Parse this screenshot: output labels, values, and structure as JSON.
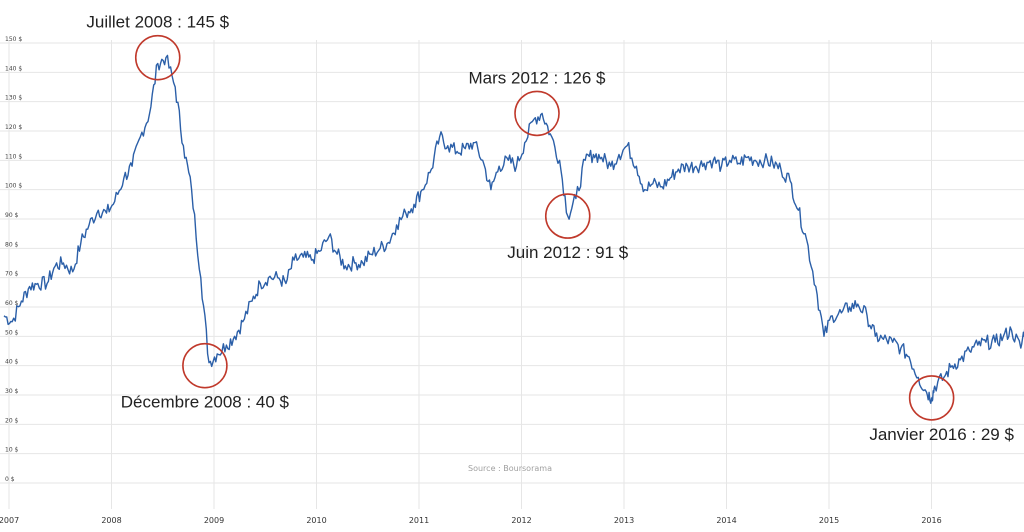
{
  "chart_data": {
    "type": "line",
    "ylabel": "",
    "xlabel": "",
    "ylim": [
      0,
      150
    ],
    "y_ticks": [
      "0 $",
      "10 $",
      "20 $",
      "30 $",
      "40 $",
      "50 $",
      "60 $",
      "70 $",
      "80 $",
      "90 $",
      "100 $",
      "110 $",
      "120 $",
      "130 $",
      "140 $",
      "150 $"
    ],
    "x_ticks": [
      "2007",
      "2008",
      "2009",
      "2010",
      "2011",
      "2012",
      "2013",
      "2014",
      "2015",
      "2016"
    ],
    "x_tick_values": [
      2007,
      2008,
      2009,
      2010,
      2011,
      2012,
      2013,
      2014,
      2015,
      2016
    ],
    "xlim": [
      2007,
      2017.0
    ],
    "grid": true,
    "line_color": "#2b5fa8",
    "annotation_color": "#c0392b",
    "source": "Source : Boursorama",
    "annotations": [
      {
        "text": "Juillet 2008 : 145 $",
        "x": 2008.5,
        "y": 145,
        "label_pos": "above"
      },
      {
        "text": "Décembre 2008 : 40 $",
        "x": 2008.96,
        "y": 40,
        "label_pos": "below"
      },
      {
        "text": "Mars 2012 : 126 $",
        "x": 2012.2,
        "y": 126,
        "label_pos": "above"
      },
      {
        "text": "Juin 2012 : 91 $",
        "x": 2012.5,
        "y": 91,
        "label_pos": "below"
      },
      {
        "text": "Janvier 2016 : 29 $",
        "x": 2016.05,
        "y": 29,
        "label_pos": "below-right"
      }
    ],
    "series": [
      {
        "x": [
          2007.0,
          2007.08,
          2007.17,
          2007.25,
          2007.33,
          2007.42,
          2007.5,
          2007.58,
          2007.67,
          2007.75,
          2007.83,
          2007.92,
          2008.0,
          2008.08,
          2008.17,
          2008.25,
          2008.33,
          2008.42,
          2008.5,
          2008.58,
          2008.67,
          2008.75,
          2008.83,
          2008.92,
          2009.0,
          2009.08,
          2009.17,
          2009.25,
          2009.33,
          2009.42,
          2009.5,
          2009.58,
          2009.67,
          2009.75,
          2009.83,
          2009.92,
          2010.0,
          2010.08,
          2010.17,
          2010.25,
          2010.33,
          2010.42,
          2010.5,
          2010.58,
          2010.67,
          2010.75,
          2010.83,
          2010.92,
          2011.0,
          2011.08,
          2011.17,
          2011.25,
          2011.33,
          2011.42,
          2011.5,
          2011.58,
          2011.67,
          2011.75,
          2011.83,
          2011.92,
          2012.0,
          2012.08,
          2012.17,
          2012.25,
          2012.33,
          2012.42,
          2012.5,
          2012.58,
          2012.67,
          2012.75,
          2012.83,
          2012.92,
          2013.0,
          2013.08,
          2013.17,
          2013.25,
          2013.33,
          2013.42,
          2013.5,
          2013.58,
          2013.67,
          2013.75,
          2013.83,
          2013.92,
          2014.0,
          2014.08,
          2014.17,
          2014.25,
          2014.33,
          2014.42,
          2014.5,
          2014.58,
          2014.67,
          2014.75,
          2014.83,
          2014.92,
          2015.0,
          2015.08,
          2015.17,
          2015.25,
          2015.33,
          2015.42,
          2015.5,
          2015.58,
          2015.67,
          2015.75,
          2015.83,
          2015.92,
          2016.0,
          2016.05,
          2016.08,
          2016.17,
          2016.25,
          2016.33,
          2016.42,
          2016.5,
          2016.58,
          2016.67,
          2016.75,
          2016.83,
          2016.92,
          2016.97
        ],
        "y": [
          57,
          55,
          62,
          67,
          68,
          68,
          74,
          75,
          72,
          82,
          88,
          93,
          92,
          96,
          104,
          108,
          118,
          126,
          143,
          145,
          135,
          115,
          100,
          70,
          41,
          44,
          47,
          50,
          55,
          62,
          68,
          70,
          70,
          68,
          76,
          77,
          76,
          79,
          84,
          78,
          74,
          75,
          75,
          78,
          80,
          82,
          88,
          92,
          95,
          100,
          107,
          118,
          115,
          113,
          114,
          116,
          110,
          100,
          108,
          110,
          108,
          116,
          124,
          126,
          119,
          110,
          91,
          97,
          110,
          112,
          111,
          108,
          112,
          115,
          108,
          100,
          102,
          101,
          104,
          107,
          108,
          108,
          109,
          110,
          108,
          110,
          109,
          111,
          110,
          110,
          109,
          107,
          103,
          93,
          83,
          67,
          50,
          57,
          58,
          60,
          61,
          57,
          50,
          49,
          48,
          46,
          43,
          36,
          31,
          29,
          33,
          36,
          40,
          42,
          45,
          47,
          48,
          48,
          50,
          52,
          46,
          55
        ]
      }
    ]
  }
}
